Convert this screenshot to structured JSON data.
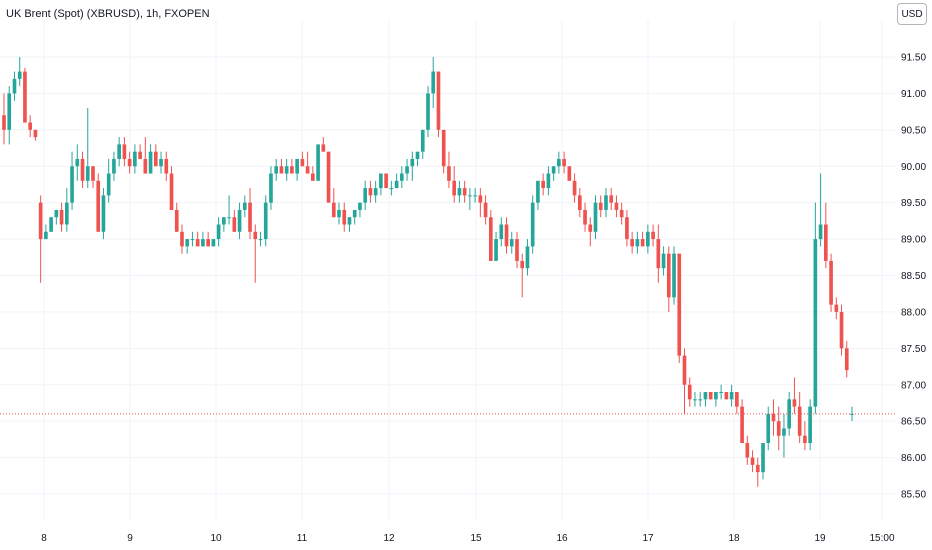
{
  "header": {
    "title": "UK Brent (Spot) (XBRUSD), 1h, FXOPEN",
    "currency": "USD"
  },
  "colors": {
    "up": "#26a69a",
    "down": "#ef5350",
    "grid": "#f0f3fa",
    "price_line": "#ef5350"
  },
  "chart_data": {
    "type": "candlestick",
    "title": "UK Brent (Spot) (XBRUSD), 1h, FXOPEN",
    "ylim": [
      85.25,
      91.75
    ],
    "y_ticks": [
      "91.50",
      "91.00",
      "90.50",
      "90.00",
      "89.50",
      "89.00",
      "88.50",
      "88.00",
      "87.50",
      "87.00",
      "86.50",
      "86.00",
      "85.50"
    ],
    "x_ticks": [
      "8",
      "9",
      "10",
      "11",
      "12",
      "15",
      "16",
      "17",
      "18",
      "19",
      "15:00"
    ],
    "grid": true,
    "last_price": 86.6,
    "candles": [
      [
        90.7,
        91.0,
        90.3,
        90.5
      ],
      [
        90.5,
        91.1,
        90.3,
        91.0
      ],
      [
        91.0,
        91.3,
        90.9,
        91.2
      ],
      [
        91.2,
        91.5,
        91.1,
        91.3
      ],
      [
        91.3,
        91.35,
        90.6,
        90.6
      ],
      [
        90.6,
        90.7,
        90.4,
        90.5
      ],
      [
        90.5,
        90.5,
        90.35,
        90.4
      ],
      [
        89.5,
        89.6,
        88.4,
        89.0
      ],
      [
        89.0,
        89.2,
        89.0,
        89.1
      ],
      [
        89.1,
        89.3,
        89.1,
        89.3
      ],
      [
        89.3,
        89.4,
        89.2,
        89.4
      ],
      [
        89.4,
        89.5,
        89.1,
        89.2
      ],
      [
        89.2,
        89.7,
        89.1,
        89.5
      ],
      [
        89.5,
        90.2,
        89.4,
        90.0
      ],
      [
        90.0,
        90.3,
        89.8,
        90.1
      ],
      [
        90.1,
        90.2,
        89.7,
        89.8
      ],
      [
        89.8,
        90.8,
        89.7,
        90.0
      ],
      [
        90.0,
        90.0,
        89.7,
        89.8
      ],
      [
        89.8,
        89.9,
        89.1,
        89.1
      ],
      [
        89.1,
        89.7,
        89.0,
        89.6
      ],
      [
        89.6,
        90.1,
        89.5,
        89.9
      ],
      [
        89.9,
        90.2,
        89.8,
        90.1
      ],
      [
        90.1,
        90.4,
        90.0,
        90.3
      ],
      [
        90.3,
        90.4,
        90.0,
        90.1
      ],
      [
        90.1,
        90.2,
        89.9,
        90.0
      ],
      [
        90.0,
        90.3,
        89.9,
        90.2
      ],
      [
        90.2,
        90.3,
        90.1,
        90.1
      ],
      [
        90.1,
        90.4,
        89.9,
        89.9
      ],
      [
        89.9,
        90.3,
        89.9,
        90.2
      ],
      [
        90.2,
        90.3,
        90.0,
        90.0
      ],
      [
        90.0,
        90.2,
        89.9,
        90.1
      ],
      [
        90.1,
        90.2,
        89.8,
        89.9
      ],
      [
        89.9,
        90.0,
        89.4,
        89.4
      ],
      [
        89.4,
        89.5,
        89.1,
        89.1
      ],
      [
        89.1,
        89.2,
        88.8,
        88.9
      ],
      [
        88.9,
        89.0,
        88.8,
        89.0
      ],
      [
        89.0,
        89.1,
        88.9,
        89.0
      ],
      [
        89.0,
        89.1,
        88.9,
        88.9
      ],
      [
        88.9,
        89.1,
        88.9,
        89.0
      ],
      [
        89.0,
        89.1,
        88.9,
        88.9
      ],
      [
        88.9,
        89.0,
        88.9,
        89.0
      ],
      [
        89.0,
        89.3,
        88.9,
        89.2
      ],
      [
        89.2,
        89.3,
        89.1,
        89.3
      ],
      [
        89.3,
        89.6,
        89.2,
        89.3
      ],
      [
        89.3,
        89.4,
        89.1,
        89.1
      ],
      [
        89.1,
        89.5,
        89.0,
        89.4
      ],
      [
        89.4,
        89.6,
        89.3,
        89.5
      ],
      [
        89.5,
        89.7,
        89.0,
        89.1
      ],
      [
        89.1,
        89.2,
        88.4,
        89.0
      ],
      [
        89.0,
        89.1,
        88.9,
        89.0
      ],
      [
        89.0,
        89.6,
        88.9,
        89.5
      ],
      [
        89.5,
        90.0,
        89.4,
        89.9
      ],
      [
        89.9,
        90.1,
        89.8,
        90.0
      ],
      [
        90.0,
        90.1,
        89.9,
        89.9
      ],
      [
        89.9,
        90.1,
        89.8,
        90.0
      ],
      [
        90.0,
        90.1,
        89.9,
        89.9
      ],
      [
        89.9,
        90.1,
        89.8,
        90.1
      ],
      [
        90.1,
        90.2,
        90.0,
        90.0
      ],
      [
        90.0,
        90.2,
        89.9,
        89.9
      ],
      [
        89.9,
        90.0,
        89.8,
        89.8
      ],
      [
        89.8,
        90.3,
        89.8,
        90.3
      ],
      [
        90.3,
        90.4,
        90.2,
        90.2
      ],
      [
        90.2,
        90.2,
        89.5,
        89.5
      ],
      [
        89.5,
        89.7,
        89.3,
        89.3
      ],
      [
        89.3,
        89.5,
        89.2,
        89.4
      ],
      [
        89.4,
        89.5,
        89.1,
        89.2
      ],
      [
        89.2,
        89.3,
        89.1,
        89.3
      ],
      [
        89.3,
        89.4,
        89.2,
        89.4
      ],
      [
        89.4,
        89.5,
        89.3,
        89.5
      ],
      [
        89.5,
        89.8,
        89.4,
        89.7
      ],
      [
        89.7,
        89.8,
        89.5,
        89.6
      ],
      [
        89.6,
        89.8,
        89.5,
        89.7
      ],
      [
        89.7,
        89.9,
        89.6,
        89.9
      ],
      [
        89.9,
        89.9,
        89.7,
        89.7
      ],
      [
        89.7,
        89.8,
        89.6,
        89.7
      ],
      [
        89.7,
        89.9,
        89.7,
        89.8
      ],
      [
        89.8,
        90.0,
        89.7,
        89.9
      ],
      [
        89.9,
        90.1,
        89.8,
        90.0
      ],
      [
        90.0,
        90.2,
        89.8,
        90.1
      ],
      [
        90.1,
        90.2,
        90.0,
        90.2
      ],
      [
        90.2,
        90.5,
        90.1,
        90.5
      ],
      [
        90.5,
        91.1,
        90.4,
        91.0
      ],
      [
        91.0,
        91.5,
        90.8,
        91.3
      ],
      [
        91.3,
        91.3,
        90.4,
        90.5
      ],
      [
        90.5,
        90.5,
        89.9,
        90.0
      ],
      [
        90.0,
        90.2,
        89.7,
        89.8
      ],
      [
        89.8,
        90.0,
        89.5,
        89.6
      ],
      [
        89.6,
        89.8,
        89.5,
        89.7
      ],
      [
        89.7,
        89.8,
        89.5,
        89.6
      ],
      [
        89.6,
        89.7,
        89.4,
        89.6
      ],
      [
        89.6,
        89.7,
        89.5,
        89.6
      ],
      [
        89.6,
        89.7,
        89.3,
        89.5
      ],
      [
        89.5,
        89.6,
        89.2,
        89.3
      ],
      [
        89.3,
        89.4,
        88.7,
        88.7
      ],
      [
        88.7,
        89.1,
        88.7,
        89.0
      ],
      [
        89.0,
        89.3,
        88.9,
        89.2
      ],
      [
        89.2,
        89.3,
        88.8,
        88.9
      ],
      [
        88.9,
        89.1,
        88.8,
        89.0
      ],
      [
        89.0,
        89.1,
        88.6,
        88.7
      ],
      [
        88.7,
        88.8,
        88.2,
        88.6
      ],
      [
        88.6,
        89.0,
        88.5,
        88.9
      ],
      [
        88.9,
        89.6,
        88.8,
        89.5
      ],
      [
        89.5,
        89.8,
        89.4,
        89.8
      ],
      [
        89.8,
        89.9,
        89.6,
        89.7
      ],
      [
        89.7,
        90.0,
        89.6,
        89.9
      ],
      [
        89.9,
        90.0,
        89.8,
        90.0
      ],
      [
        90.0,
        90.2,
        89.9,
        90.1
      ],
      [
        90.1,
        90.2,
        89.9,
        90.0
      ],
      [
        90.0,
        90.0,
        89.8,
        89.8
      ],
      [
        89.8,
        89.9,
        89.5,
        89.6
      ],
      [
        89.6,
        89.7,
        89.3,
        89.4
      ],
      [
        89.4,
        89.5,
        89.1,
        89.2
      ],
      [
        89.2,
        89.3,
        88.9,
        89.1
      ],
      [
        89.1,
        89.6,
        89.0,
        89.5
      ],
      [
        89.5,
        89.6,
        89.3,
        89.4
      ],
      [
        89.4,
        89.7,
        89.3,
        89.6
      ],
      [
        89.6,
        89.7,
        89.4,
        89.5
      ],
      [
        89.5,
        89.6,
        89.3,
        89.4
      ],
      [
        89.4,
        89.5,
        89.2,
        89.3
      ],
      [
        89.3,
        89.4,
        88.9,
        89.0
      ],
      [
        89.0,
        89.1,
        88.8,
        88.9
      ],
      [
        88.9,
        89.1,
        88.8,
        89.0
      ],
      [
        89.0,
        89.1,
        88.9,
        88.9
      ],
      [
        88.9,
        89.2,
        88.8,
        89.1
      ],
      [
        89.1,
        89.2,
        88.9,
        89.0
      ],
      [
        89.0,
        89.2,
        88.4,
        88.6
      ],
      [
        88.6,
        88.9,
        88.5,
        88.8
      ],
      [
        88.8,
        88.9,
        88.0,
        88.2
      ],
      [
        88.2,
        88.9,
        88.1,
        88.8
      ],
      [
        88.8,
        88.8,
        87.3,
        87.4
      ],
      [
        87.4,
        87.5,
        86.6,
        87.0
      ],
      [
        87.0,
        87.1,
        86.7,
        86.8
      ],
      [
        86.8,
        86.9,
        86.7,
        86.8
      ],
      [
        86.8,
        86.9,
        86.7,
        86.8
      ],
      [
        86.8,
        86.9,
        86.7,
        86.9
      ],
      [
        86.9,
        86.9,
        86.8,
        86.8
      ],
      [
        86.8,
        86.9,
        86.7,
        86.9
      ],
      [
        86.9,
        87.0,
        86.8,
        86.9
      ],
      [
        86.9,
        86.9,
        86.8,
        86.8
      ],
      [
        86.8,
        87.0,
        86.7,
        86.9
      ],
      [
        86.9,
        86.9,
        86.6,
        86.7
      ],
      [
        86.7,
        86.8,
        86.2,
        86.2
      ],
      [
        86.2,
        86.3,
        85.9,
        86.0
      ],
      [
        86.0,
        86.1,
        85.8,
        85.9
      ],
      [
        85.9,
        86.0,
        85.6,
        85.8
      ],
      [
        85.8,
        86.2,
        85.7,
        86.2
      ],
      [
        86.2,
        86.7,
        86.1,
        86.6
      ],
      [
        86.6,
        86.8,
        86.3,
        86.5
      ],
      [
        86.5,
        86.7,
        86.1,
        86.3
      ],
      [
        86.3,
        86.6,
        86.0,
        86.4
      ],
      [
        86.4,
        86.9,
        86.3,
        86.8
      ],
      [
        86.8,
        87.1,
        86.6,
        86.7
      ],
      [
        86.7,
        86.9,
        86.2,
        86.3
      ],
      [
        86.3,
        86.5,
        86.1,
        86.2
      ],
      [
        86.2,
        86.8,
        86.1,
        86.7
      ],
      [
        86.7,
        89.5,
        86.6,
        89.0
      ],
      [
        89.0,
        89.9,
        88.9,
        89.2
      ],
      [
        89.2,
        89.5,
        88.6,
        88.7
      ],
      [
        88.7,
        88.8,
        88.0,
        88.1
      ],
      [
        88.1,
        88.2,
        87.9,
        88.0
      ],
      [
        88.0,
        88.1,
        87.4,
        87.5
      ],
      [
        87.5,
        87.6,
        87.1,
        87.2
      ],
      [
        86.6,
        86.7,
        86.5,
        86.6
      ]
    ]
  }
}
